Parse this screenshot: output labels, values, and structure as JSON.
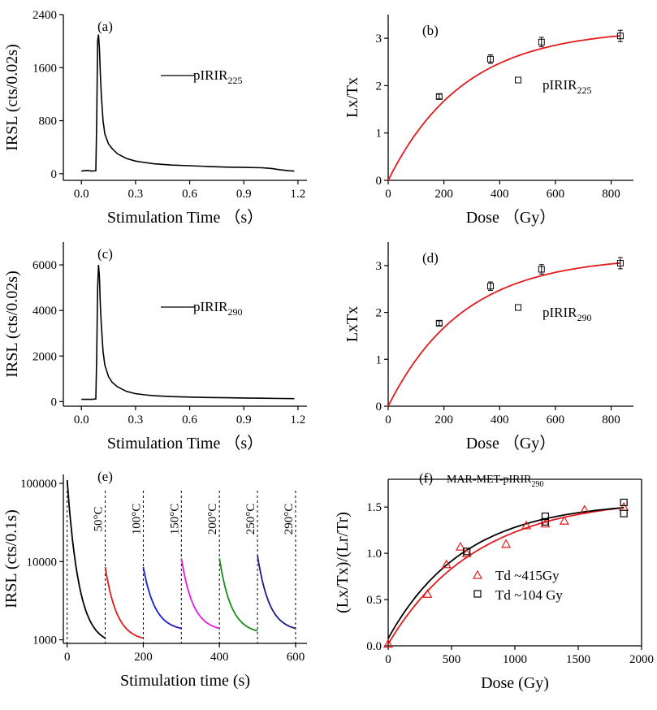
{
  "chart_data": [
    {
      "panel": "a",
      "type": "line",
      "tag": "(a)",
      "xlabel": "Stimulation Time （s）",
      "ylabel": "IRSL (cts/0.02s)",
      "xlim": [
        -0.1,
        1.25
      ],
      "ylim": [
        -100,
        2400
      ],
      "xticks": [
        0.0,
        0.3,
        0.6,
        0.9,
        1.2
      ],
      "xtick_labels": [
        "0.0",
        "0.3",
        "0.6",
        "0.9",
        "1.2"
      ],
      "yticks": [
        0,
        800,
        1600,
        2400
      ],
      "ytick_labels": [
        "0",
        "800",
        "1600",
        "2400"
      ],
      "series": [
        {
          "name": "pIRIR225",
          "legend_main": "pIRIR",
          "legend_sub": "225",
          "color": "#000000",
          "x": [
            0.0,
            0.03,
            0.06,
            0.08,
            0.085,
            0.09,
            0.095,
            0.1,
            0.105,
            0.11,
            0.12,
            0.13,
            0.15,
            0.17,
            0.2,
            0.25,
            0.3,
            0.35,
            0.4,
            0.5,
            0.6,
            0.7,
            0.8,
            0.9,
            1.0,
            1.05,
            1.1,
            1.15,
            1.18
          ],
          "y": [
            40,
            50,
            40,
            45,
            800,
            2000,
            2100,
            1900,
            1500,
            1200,
            800,
            600,
            450,
            380,
            300,
            230,
            190,
            170,
            150,
            130,
            120,
            110,
            100,
            95,
            90,
            80,
            60,
            45,
            40
          ]
        }
      ]
    },
    {
      "panel": "b",
      "type": "scatter",
      "tag": "(b)",
      "xlabel": "Dose （Gy）",
      "ylabel": "Lx/Tx",
      "xlim": [
        0,
        880
      ],
      "ylim": [
        0,
        3.5
      ],
      "xticks": [
        0,
        200,
        400,
        600,
        800
      ],
      "xtick_labels": [
        "0",
        "200",
        "400",
        "600",
        "800"
      ],
      "yticks": [
        0,
        1,
        2,
        3
      ],
      "ytick_labels": [
        "0",
        "1",
        "2",
        "3"
      ],
      "series": [
        {
          "name": "pIRIR225",
          "legend_main": "pIRIR",
          "legend_sub": "225",
          "color": "#000000",
          "x": [
            183,
            367,
            550,
            833
          ],
          "y": [
            1.77,
            2.56,
            2.92,
            3.05
          ],
          "yerr": [
            0.05,
            0.09,
            0.1,
            0.12
          ]
        }
      ],
      "fit": {
        "color": "#e41a1c",
        "ymax": 3.2,
        "d0": 270
      }
    },
    {
      "panel": "c",
      "type": "line",
      "tag": "(c)",
      "xlabel": "Stimulation Time （s）",
      "ylabel": "IRSL (cts/0.02s)",
      "xlim": [
        -0.1,
        1.25
      ],
      "ylim": [
        -200,
        7000
      ],
      "xticks": [
        0.0,
        0.3,
        0.6,
        0.9,
        1.2
      ],
      "xtick_labels": [
        "0.0",
        "0.3",
        "0.6",
        "0.9",
        "1.2"
      ],
      "yticks": [
        0,
        2000,
        4000,
        6000
      ],
      "ytick_labels": [
        "0",
        "2000",
        "4000",
        "6000"
      ],
      "series": [
        {
          "name": "pIRIR290",
          "legend_main": "pIRIR",
          "legend_sub": "290",
          "color": "#000000",
          "x": [
            0.0,
            0.03,
            0.06,
            0.08,
            0.085,
            0.09,
            0.095,
            0.1,
            0.105,
            0.11,
            0.12,
            0.13,
            0.15,
            0.17,
            0.2,
            0.25,
            0.3,
            0.35,
            0.4,
            0.5,
            0.6,
            0.7,
            0.8,
            0.9,
            1.0,
            1.1,
            1.18
          ],
          "y": [
            100,
            100,
            100,
            120,
            2000,
            5000,
            6000,
            5500,
            4200,
            3400,
            2200,
            1600,
            1100,
            850,
            650,
            450,
            350,
            300,
            260,
            220,
            200,
            180,
            170,
            160,
            150,
            140,
            130
          ]
        }
      ]
    },
    {
      "panel": "d",
      "type": "scatter",
      "tag": "(d)",
      "xlabel": "Dose （Gy）",
      "ylabel": "LxTx",
      "xlim": [
        0,
        880
      ],
      "ylim": [
        0,
        3.5
      ],
      "xticks": [
        0,
        200,
        400,
        600,
        800
      ],
      "xtick_labels": [
        "0",
        "200",
        "400",
        "600",
        "800"
      ],
      "yticks": [
        0,
        1,
        2,
        3
      ],
      "ytick_labels": [
        "0",
        "1",
        "2",
        "3"
      ],
      "series": [
        {
          "name": "pIRIR290",
          "legend_main": "pIRIR",
          "legend_sub": "290",
          "color": "#000000",
          "x": [
            183,
            367,
            550,
            833
          ],
          "y": [
            1.77,
            2.56,
            2.92,
            3.05
          ],
          "yerr": [
            0.05,
            0.09,
            0.1,
            0.12
          ]
        }
      ],
      "fit": {
        "color": "#e41a1c",
        "ymax": 3.2,
        "d0": 270
      }
    },
    {
      "panel": "e",
      "type": "line",
      "tag": "(e)",
      "xlabel": "Stimulation time (s)",
      "ylabel": "IRSL (cts/0.1s)",
      "xlim": [
        -10,
        630
      ],
      "ylim": [
        900,
        130000
      ],
      "yscale": "log",
      "xticks": [
        0,
        200,
        400,
        600
      ],
      "xtick_labels": [
        "0",
        "200",
        "400",
        "600"
      ],
      "yticks": [
        1000,
        10000,
        100000
      ],
      "ytick_labels": [
        "1000",
        "10000",
        "100000"
      ],
      "dividers": [
        0,
        100,
        200,
        300,
        400,
        500,
        600
      ],
      "segment_labels": [
        "50°C",
        "100°C",
        "150°C",
        "200°C",
        "250°C",
        "290°C"
      ],
      "series": [
        {
          "name": "50°C",
          "color": "#000000",
          "start": 0,
          "end": 100,
          "y0": 110000,
          "y1": 1050
        },
        {
          "name": "100°C",
          "color": "#e41a1c",
          "start": 100,
          "end": 200,
          "y0": 8500,
          "y1": 1050
        },
        {
          "name": "150°C",
          "color": "#1a1ad4",
          "start": 200,
          "end": 300,
          "y0": 8500,
          "y1": 1400
        },
        {
          "name": "200°C",
          "color": "#e31ae3",
          "start": 300,
          "end": 400,
          "y0": 11000,
          "y1": 1400
        },
        {
          "name": "250°C",
          "color": "#1a8c1a",
          "start": 400,
          "end": 500,
          "y0": 11000,
          "y1": 1300
        },
        {
          "name": "290°C",
          "color": "#1a1a8c",
          "start": 500,
          "end": 600,
          "y0": 12000,
          "y1": 1400
        }
      ]
    },
    {
      "panel": "f",
      "type": "scatter",
      "tag": "(f)",
      "subtitle_main": "MAR-MET-pIRIR",
      "subtitle_sub": "290",
      "xlabel": "Dose (Gy)",
      "ylabel": "(Lx/Tx)/(Lr/Tr)",
      "xlim": [
        0,
        2000
      ],
      "ylim": [
        0,
        1.8
      ],
      "xticks": [
        0,
        500,
        1000,
        1500,
        2000
      ],
      "xtick_labels": [
        "0",
        "500",
        "1000",
        "1500",
        "2000"
      ],
      "yticks": [
        0.0,
        0.5,
        1.0,
        1.5
      ],
      "ytick_labels": [
        "0.0",
        "0.5",
        "1.0",
        "1.5"
      ],
      "series": [
        {
          "name": "Td ~415Gy",
          "marker": "triangle",
          "color": "#e41a1c",
          "x": [
            0,
            310,
            460,
            570,
            620,
            930,
            1090,
            1240,
            1390,
            1550,
            1860
          ],
          "y": [
            0.02,
            0.56,
            0.88,
            1.07,
            1.0,
            1.1,
            1.3,
            1.32,
            1.35,
            1.47,
            1.5
          ]
        },
        {
          "name": "Td ~104 Gy",
          "marker": "square",
          "color": "#000000",
          "x": [
            620,
            1240,
            1240,
            1860,
            1860
          ],
          "y": [
            1.02,
            1.34,
            1.4,
            1.43,
            1.55
          ]
        }
      ],
      "fits": [
        {
          "color": "#e41a1c",
          "ymax": 1.6,
          "d0": 690,
          "y0": 0.02
        },
        {
          "color": "#000000",
          "ymax": 1.56,
          "d0": 600,
          "y0": 0.08
        }
      ]
    }
  ]
}
